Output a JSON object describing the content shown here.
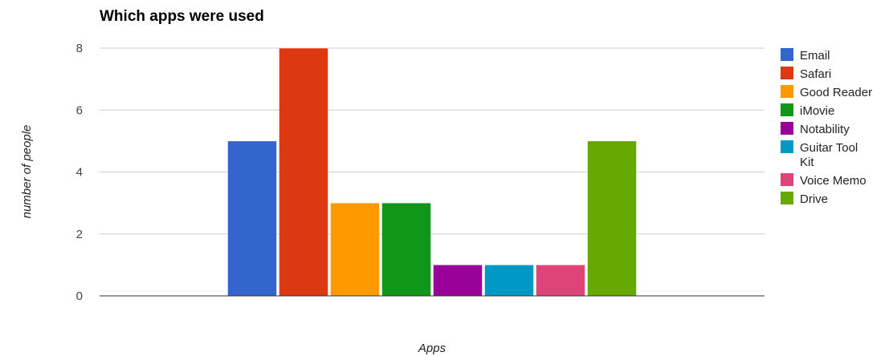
{
  "chart_data": {
    "type": "bar",
    "title": "Which apps were used",
    "xlabel": "Apps",
    "ylabel": "number of people",
    "ylim": [
      0,
      8
    ],
    "yticks": [
      "0",
      "2",
      "4",
      "6",
      "8"
    ],
    "grid": true,
    "legend_position": "right",
    "series": [
      {
        "name": "Email",
        "values": [
          5
        ],
        "color": "#3366cc"
      },
      {
        "name": "Safari",
        "values": [
          8
        ],
        "color": "#dc3912"
      },
      {
        "name": "Good Reader",
        "values": [
          3
        ],
        "color": "#ff9900"
      },
      {
        "name": "iMovie",
        "values": [
          3
        ],
        "color": "#109618"
      },
      {
        "name": "Notability",
        "values": [
          1
        ],
        "color": "#990099"
      },
      {
        "name": "Guitar Tool Kit",
        "values": [
          1
        ],
        "color": "#0099c6"
      },
      {
        "name": "Voice Memo",
        "values": [
          1
        ],
        "color": "#dd4477"
      },
      {
        "name": "Drive",
        "values": [
          5
        ],
        "color": "#66aa00"
      }
    ]
  }
}
